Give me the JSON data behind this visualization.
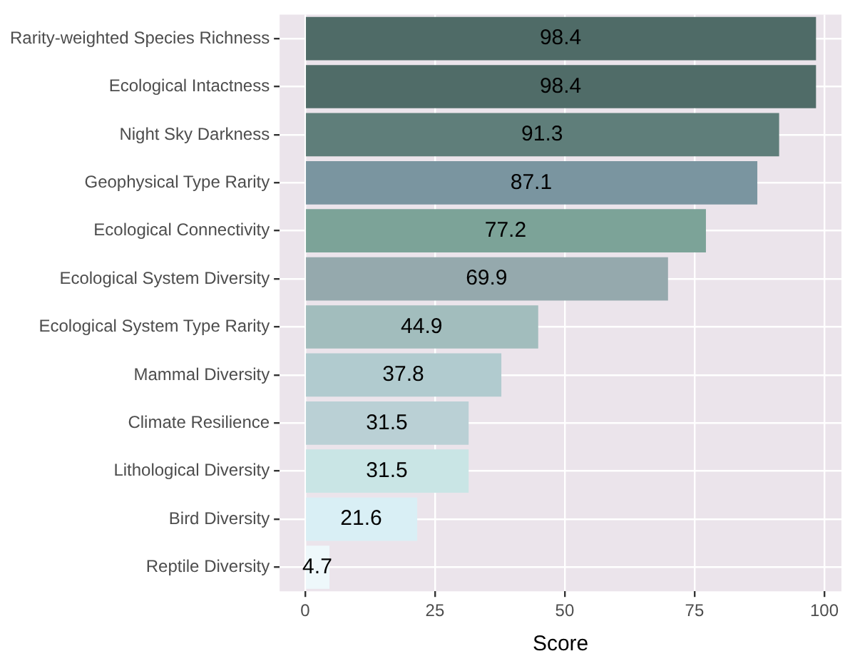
{
  "chart_data": {
    "type": "bar",
    "orientation": "horizontal",
    "xlabel": "Score",
    "categories": [
      "Rarity-weighted Species Richness",
      "Ecological Intactness",
      "Night Sky Darkness",
      "Geophysical Type Rarity",
      "Ecological Connectivity",
      "Ecological System Diversity",
      "Ecological System Type Rarity",
      "Mammal Diversity",
      "Climate Resilience",
      "Lithological Diversity",
      "Bird Diversity",
      "Reptile Diversity"
    ],
    "values": [
      98.4,
      98.4,
      91.3,
      87.1,
      77.2,
      69.9,
      44.9,
      37.8,
      31.5,
      31.5,
      21.6,
      4.7
    ],
    "colors": [
      "#4f6b67",
      "#506c68",
      "#5f7e7a",
      "#7a95a0",
      "#7ca398",
      "#95a9ad",
      "#a2bdbd",
      "#b1cbcf",
      "#bad0d5",
      "#c9e5e5",
      "#d9eff5",
      "#eef8fb"
    ],
    "xlim": [
      -4.9,
      103.3
    ],
    "xticks": [
      0,
      25,
      50,
      75,
      100
    ],
    "grid": true,
    "legend": false,
    "data_labels": true
  }
}
